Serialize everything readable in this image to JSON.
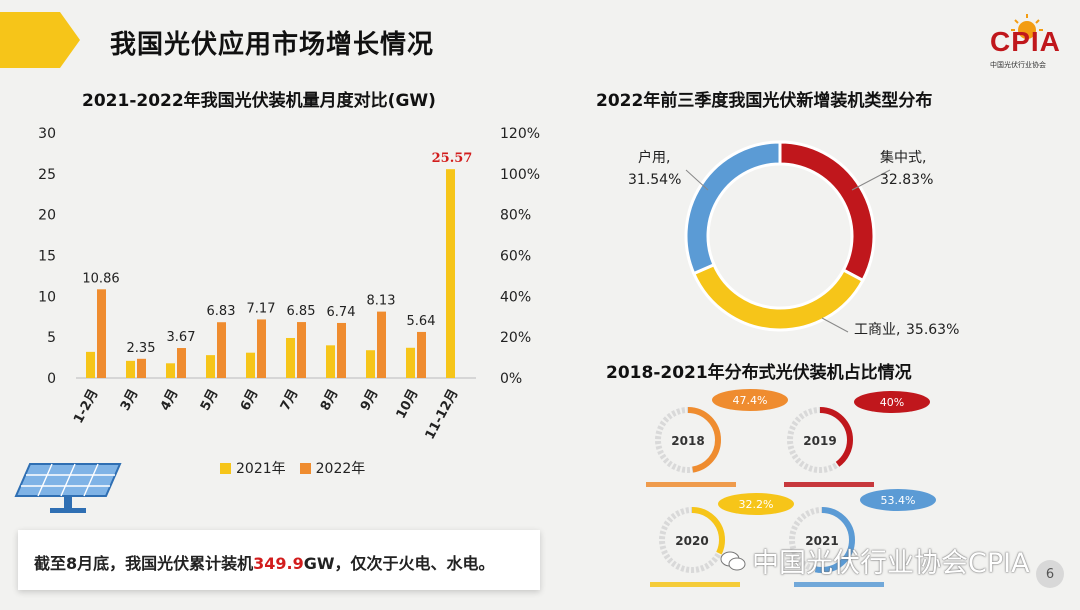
{
  "header": {
    "title": "我国光伏应用市场增长情况",
    "logo_text": "CPIA",
    "logo_sub": "中国光伏行业协会",
    "accent": "#f6c519"
  },
  "bar_chart_title": "2021-2022年我国光伏装机量月度对比(GW)",
  "donut_title": "2022年前三季度我国光伏新增装机类型分布",
  "small_donuts_title": "2018-2021年分布式光伏装机占比情况",
  "note": {
    "prefix": "截至8月底，我国光伏累计装机",
    "value": "349.9",
    "suffix": "GW，仅次于火电、水电。"
  },
  "watermark": "中国光伏行业协会CPIA",
  "page_number": "6",
  "chart_data": [
    {
      "type": "bar",
      "categories": [
        "1-2月",
        "3月",
        "4月",
        "5月",
        "6月",
        "7月",
        "8月",
        "9月",
        "10月",
        "11-12月"
      ],
      "series": [
        {
          "name": "2021年",
          "color": "#f6c519",
          "values": [
            3.2,
            2.1,
            1.8,
            2.8,
            3.1,
            4.9,
            4.0,
            3.4,
            3.7,
            25.57
          ]
        },
        {
          "name": "2022年",
          "color": "#ef8c2f",
          "values": [
            10.86,
            2.35,
            3.67,
            6.83,
            7.17,
            6.85,
            6.74,
            8.13,
            5.64,
            null
          ]
        }
      ],
      "data_labels": [
        "10.86",
        "2.35",
        "3.67",
        "6.83",
        "7.17",
        "6.85",
        "6.74",
        "8.13",
        "5.64",
        "25.57"
      ],
      "y_left_ticks": [
        "0",
        "5",
        "10",
        "15",
        "20",
        "25",
        "30"
      ],
      "y_right_ticks": [
        "0%",
        "20%",
        "40%",
        "60%",
        "80%",
        "100%",
        "120%"
      ],
      "ylim": [
        0,
        30
      ],
      "legend_position": "bottom"
    },
    {
      "type": "pie",
      "labels": [
        "集中式,",
        "工商业,",
        "户用,"
      ],
      "values": [
        32.83,
        35.63,
        31.54
      ],
      "value_labels": [
        "32.83%",
        "35.63%",
        "31.54%"
      ],
      "colors": [
        "#c0171c",
        "#f6c519",
        "#5b9bd5"
      ]
    },
    {
      "type": "pie",
      "items": [
        {
          "year": "2018",
          "value": 47.4,
          "label": "47.4%",
          "color": "#ef8c2f"
        },
        {
          "year": "2019",
          "value": 40,
          "label": "40%",
          "color": "#c0171c"
        },
        {
          "year": "2020",
          "value": 32.2,
          "label": "32.2%",
          "color": "#f6c519"
        },
        {
          "year": "2021",
          "value": 53.4,
          "label": "53.4%",
          "color": "#5b9bd5"
        }
      ]
    }
  ]
}
